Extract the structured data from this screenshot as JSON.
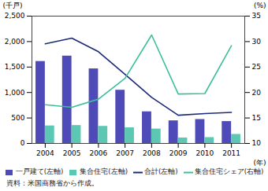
{
  "chart_data": {
    "type": "bar",
    "categories": [
      "2004",
      "2005",
      "2006",
      "2007",
      "2008",
      "2009",
      "2010",
      "2011"
    ],
    "x_label": "(年)",
    "y_label": "(千戸)",
    "y2_label": "(%)",
    "ylim": [
      0,
      2500
    ],
    "yticks": [
      0,
      500,
      {
        "value": 1000,
        "label": "1,000"
      },
      {
        "value": 1500,
        "label": "1,500"
      },
      {
        "value": 2000,
        "label": "2,000"
      },
      {
        "value": 2500,
        "label": "2,500"
      }
    ],
    "y2lim": [
      10,
      35
    ],
    "y2ticks": [
      10,
      15,
      20,
      25,
      30,
      35
    ],
    "legend": "bottom",
    "series": [
      {
        "name": "一戸建て(左軸)",
        "type": "bar",
        "color": "#4e4bb8",
        "values": [
          1610,
          1716,
          1465,
          1046,
          622,
          445,
          471,
          431
        ]
      },
      {
        "name": "集合住宅(左軸)",
        "type": "bar",
        "color": "#5cc7b2",
        "values": [
          345,
          353,
          336,
          309,
          284,
          109,
          116,
          178
        ]
      },
      {
        "name": "合計(左軸)",
        "type": "line",
        "color": "#1b2a78",
        "values": [
          1956,
          2068,
          1801,
          1355,
          906,
          554,
          587,
          609
        ]
      },
      {
        "name": "集合住宅シェア(右軸)",
        "type": "line",
        "axis": "y2",
        "color": "#3dbf9c",
        "values": [
          17.6,
          17.1,
          18.7,
          22.8,
          31.3,
          19.7,
          19.8,
          29.2
        ]
      }
    ],
    "caption": "資料：米国商務省から作成。"
  }
}
